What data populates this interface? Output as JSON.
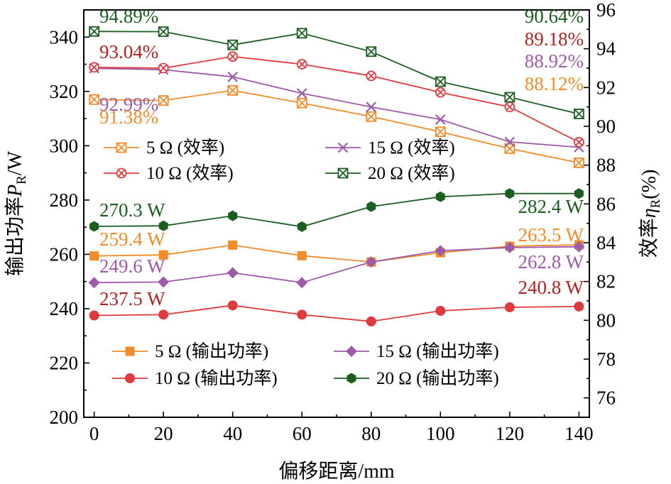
{
  "chart_data": {
    "type": "line",
    "xlabel": "偏移距离/mm",
    "ylabel_left": "输出功率P_R/W",
    "ylabel_right": "效率η_R(%)",
    "x": [
      0,
      20,
      40,
      60,
      80,
      100,
      120,
      140
    ],
    "xlim": [
      -3,
      143
    ],
    "xticks": [
      0,
      20,
      40,
      60,
      80,
      100,
      120,
      140
    ],
    "ylim_left": [
      200,
      350
    ],
    "yticks_left": [
      200,
      220,
      240,
      260,
      280,
      300,
      320,
      340
    ],
    "ylim_right": [
      75,
      96
    ],
    "yticks_right": [
      76,
      78,
      80,
      82,
      84,
      86,
      88,
      90,
      92,
      94,
      96
    ],
    "grid": false,
    "power_series": [
      {
        "name": "5 Ω (输出功率)",
        "color": "#F28C28",
        "marker": "square",
        "axis": "left",
        "values": [
          259.4,
          259.8,
          263.4,
          259.5,
          257.2,
          260.6,
          263.0,
          263.5
        ]
      },
      {
        "name": "15 Ω (输出功率)",
        "color": "#9E5BA8",
        "marker": "diamond",
        "axis": "left",
        "values": [
          249.6,
          249.8,
          253.2,
          249.6,
          257.2,
          261.3,
          262.5,
          262.8
        ]
      },
      {
        "name": "10 Ω (输出功率)",
        "color": "#E03A3E",
        "marker": "circle",
        "axis": "left",
        "values": [
          237.5,
          237.8,
          241.2,
          237.8,
          235.3,
          239.2,
          240.5,
          240.8
        ]
      },
      {
        "name": "20 Ω (输出功率)",
        "color": "#1B5E20",
        "marker": "hexagon",
        "axis": "left",
        "values": [
          270.3,
          270.5,
          274.2,
          270.2,
          277.6,
          281.2,
          282.4,
          282.4
        ]
      }
    ],
    "efficiency_series": [
      {
        "name": "5 Ω (效率)",
        "color": "#F28C28",
        "marker": "boxx",
        "axis": "right",
        "values": [
          91.38,
          91.33,
          91.85,
          91.2,
          90.5,
          89.72,
          88.85,
          88.12
        ]
      },
      {
        "name": "15 Ω (效率)",
        "color": "#9E5BA8",
        "marker": "x",
        "axis": "right",
        "values": [
          92.99,
          92.92,
          92.55,
          91.7,
          91.0,
          90.35,
          89.2,
          88.92
        ]
      },
      {
        "name": "10 Ω (效率)",
        "color": "#E03A3E",
        "marker": "circlex",
        "axis": "right",
        "values": [
          93.04,
          93.0,
          93.6,
          93.2,
          92.6,
          91.75,
          91.0,
          89.18
        ]
      },
      {
        "name": "20 Ω (效率)",
        "color": "#1B5E20",
        "marker": "boxx",
        "axis": "right",
        "values": [
          94.89,
          94.88,
          94.2,
          94.8,
          93.85,
          92.3,
          91.5,
          90.64
        ]
      }
    ],
    "annotations": [
      {
        "text": "94.89%",
        "color": "#1B5E20"
      },
      {
        "text": "93.04%",
        "color": "#B22222"
      },
      {
        "text": "92.99%",
        "color": "#9E5BA8"
      },
      {
        "text": "91.38%",
        "color": "#F28C28"
      },
      {
        "text": "90.64%",
        "color": "#1B5E20"
      },
      {
        "text": "89.18%",
        "color": "#B22222"
      },
      {
        "text": "88.92%",
        "color": "#9E5BA8"
      },
      {
        "text": "88.12%",
        "color": "#F28C28"
      },
      {
        "text": "270.3 W",
        "color": "#1B5E20"
      },
      {
        "text": "259.4 W",
        "color": "#F28C28"
      },
      {
        "text": "249.6 W",
        "color": "#9E5BA8"
      },
      {
        "text": "237.5 W",
        "color": "#B22222"
      },
      {
        "text": "282.4 W",
        "color": "#1B5E20"
      },
      {
        "text": "263.5 W",
        "color": "#F28C28"
      },
      {
        "text": "262.8 W",
        "color": "#9E5BA8"
      },
      {
        "text": "240.8 W",
        "color": "#B22222"
      }
    ],
    "legend_efficiency": {
      "placement": "middle-left",
      "entries": [
        "5 Ω (效率)",
        "15 Ω (效率)",
        "10 Ω (效率)",
        "20 Ω (效率)"
      ]
    },
    "legend_power": {
      "placement": "bottom-left",
      "entries": [
        "5 Ω (输出功率)",
        "15 Ω (输出功率)",
        "10 Ω (输出功率)",
        "20 Ω (输出功率)"
      ]
    }
  }
}
